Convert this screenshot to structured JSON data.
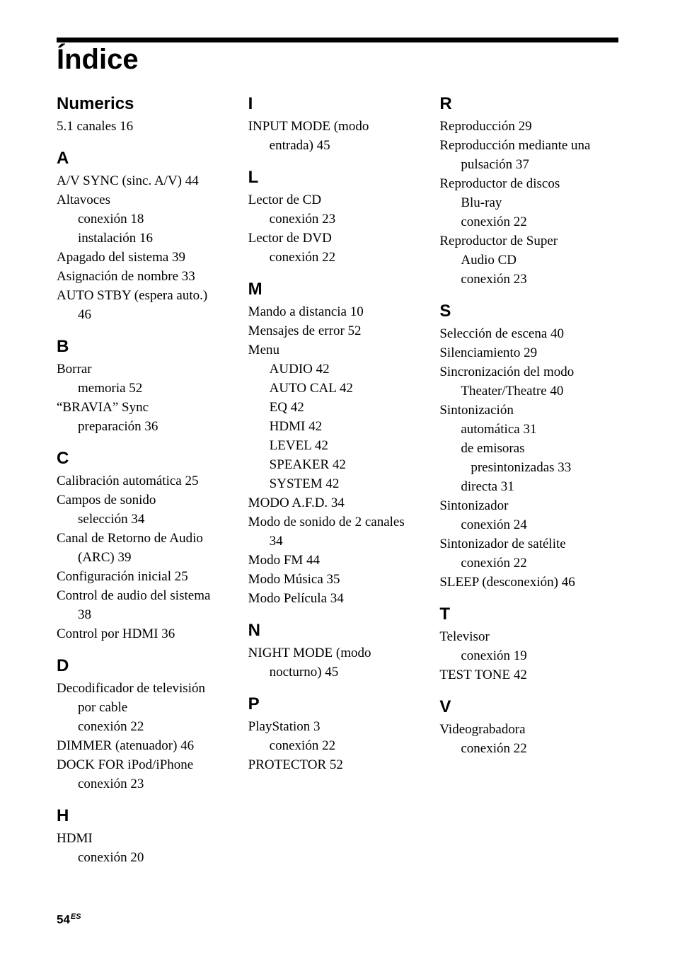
{
  "title": "Índice",
  "footer": {
    "page": "54",
    "lang": "ES"
  },
  "colors": {
    "text": "#000000",
    "background": "#ffffff",
    "rule": "#000000"
  },
  "typography": {
    "title_family": "Arial",
    "title_size_pt": 30,
    "title_weight": "bold",
    "section_family": "Arial",
    "section_size_pt": 18,
    "section_weight": "bold",
    "body_family": "Times New Roman",
    "body_size_pt": 14,
    "line_height": 27
  },
  "col1": [
    {
      "head": "Numerics",
      "entries": [
        {
          "t": "5.1 canales  16"
        }
      ]
    },
    {
      "head": "A",
      "entries": [
        {
          "t": "A/V SYNC (sinc. A/V)  44"
        },
        {
          "t": "Altavoces"
        },
        {
          "t": "conexión  18",
          "sub": 1
        },
        {
          "t": "instalación  16",
          "sub": 1
        },
        {
          "t": "Apagado del sistema  39"
        },
        {
          "t": "Asignación de nombre  33"
        },
        {
          "t": "AUTO STBY (espera auto.)  "
        },
        {
          "t": "46",
          "sub": 1
        }
      ]
    },
    {
      "head": "B",
      "entries": [
        {
          "t": "Borrar"
        },
        {
          "t": "memoria  52",
          "sub": 1
        },
        {
          "t": "“BRAVIA” Sync"
        },
        {
          "t": "preparación  36",
          "sub": 1
        }
      ]
    },
    {
      "head": "C",
      "entries": [
        {
          "t": "Calibración automática  25"
        },
        {
          "t": "Campos de sonido"
        },
        {
          "t": "selección  34",
          "sub": 1
        },
        {
          "t": "Canal de Retorno de Audio "
        },
        {
          "t": "(ARC)  39",
          "sub": 1
        },
        {
          "t": "Configuración inicial  25"
        },
        {
          "t": "Control de audio del sistema  "
        },
        {
          "t": "38",
          "sub": 1
        },
        {
          "t": "Control por HDMI  36"
        }
      ]
    },
    {
      "head": "D",
      "entries": [
        {
          "t": "Decodificador de televisión "
        },
        {
          "t": "por cable",
          "sub": 1
        },
        {
          "t": "conexión  22",
          "sub": 1
        },
        {
          "t": "DIMMER (atenuador)  46"
        },
        {
          "t": "DOCK FOR iPod/iPhone"
        },
        {
          "t": "conexión  23",
          "sub": 1
        }
      ]
    },
    {
      "head": "H",
      "entries": [
        {
          "t": "HDMI"
        },
        {
          "t": "conexión  20",
          "sub": 1
        }
      ]
    }
  ],
  "col2": [
    {
      "head": "I",
      "entries": [
        {
          "t": "INPUT MODE (modo "
        },
        {
          "t": "entrada)  45",
          "sub": 1
        }
      ]
    },
    {
      "head": "L",
      "entries": [
        {
          "t": "Lector de CD"
        },
        {
          "t": "conexión  23",
          "sub": 1
        },
        {
          "t": "Lector de DVD"
        },
        {
          "t": "conexión  22",
          "sub": 1
        }
      ]
    },
    {
      "head": "M",
      "entries": [
        {
          "t": "Mando a distancia  10"
        },
        {
          "t": "Mensajes de error  52"
        },
        {
          "t": "Menu"
        },
        {
          "t": "AUDIO  42",
          "sub": 1
        },
        {
          "t": "AUTO CAL  42",
          "sub": 1
        },
        {
          "t": "EQ  42",
          "sub": 1
        },
        {
          "t": "HDMI  42",
          "sub": 1
        },
        {
          "t": "LEVEL  42",
          "sub": 1
        },
        {
          "t": "SPEAKER  42",
          "sub": 1
        },
        {
          "t": "SYSTEM  42",
          "sub": 1
        },
        {
          "t": "MODO A.F.D.  34"
        },
        {
          "t": "Modo de sonido de 2 canales  "
        },
        {
          "t": "34",
          "sub": 1
        },
        {
          "t": "Modo FM  44"
        },
        {
          "t": "Modo Música  35"
        },
        {
          "t": "Modo Película  34"
        }
      ]
    },
    {
      "head": "N",
      "entries": [
        {
          "t": "NIGHT MODE (modo "
        },
        {
          "t": "nocturno)  45",
          "sub": 1
        }
      ]
    },
    {
      "head": "P",
      "entries": [
        {
          "t": "PlayStation 3"
        },
        {
          "t": "conexión  22",
          "sub": 1
        },
        {
          "t": "PROTECTOR  52"
        }
      ]
    }
  ],
  "col3": [
    {
      "head": "R",
      "entries": [
        {
          "t": "Reproducción  29"
        },
        {
          "t": "Reproducción mediante una "
        },
        {
          "t": "pulsación  37",
          "sub": 1
        },
        {
          "t": "Reproductor de discos "
        },
        {
          "t": "Blu-ray",
          "sub": 1
        },
        {
          "t": "conexión  22",
          "sub": 1
        },
        {
          "t": "Reproductor de Super "
        },
        {
          "t": "Audio CD",
          "sub": 1
        },
        {
          "t": "conexión  23",
          "sub": 1
        }
      ]
    },
    {
      "head": "S",
      "entries": [
        {
          "t": "Selección de escena  40"
        },
        {
          "t": "Silenciamiento  29"
        },
        {
          "t": "Sincronización del modo "
        },
        {
          "t": "Theater/Theatre  40",
          "sub": 1
        },
        {
          "t": "Sintonización"
        },
        {
          "t": "automática  31",
          "sub": 1
        },
        {
          "t": "de emisoras ",
          "sub": 1
        },
        {
          "t": "presintonizadas  33",
          "sub": 2
        },
        {
          "t": "directa  31",
          "sub": 1
        },
        {
          "t": "Sintonizador"
        },
        {
          "t": "conexión  24",
          "sub": 1
        },
        {
          "t": "Sintonizador de satélite"
        },
        {
          "t": "conexión  22",
          "sub": 1
        },
        {
          "t": "SLEEP (desconexión)  46"
        }
      ]
    },
    {
      "head": "T",
      "entries": [
        {
          "t": "Televisor"
        },
        {
          "t": "conexión  19",
          "sub": 1
        },
        {
          "t": "TEST TONE  42"
        }
      ]
    },
    {
      "head": "V",
      "entries": [
        {
          "t": "Videograbadora"
        },
        {
          "t": "conexión  22",
          "sub": 1
        }
      ]
    }
  ]
}
